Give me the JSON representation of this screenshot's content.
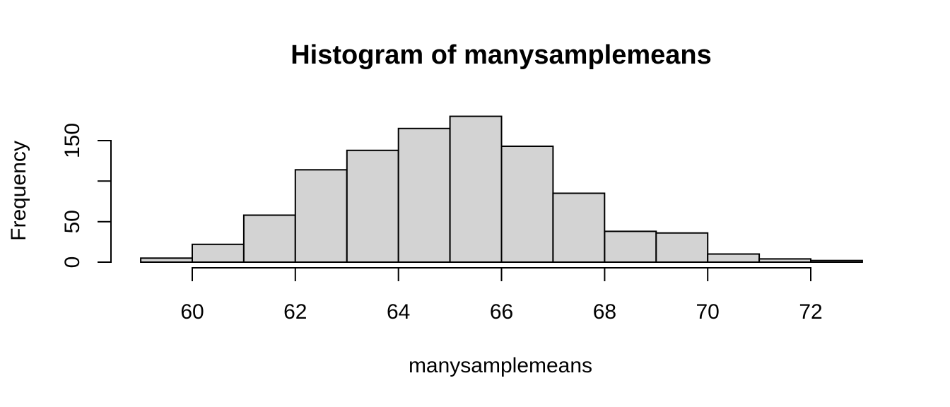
{
  "chart_data": {
    "type": "bar",
    "subtype": "histogram",
    "title": "Histogram of manysamplemeans",
    "xlabel": "manysamplemeans",
    "ylabel": "Frequency",
    "bin_edges": [
      59,
      60,
      61,
      62,
      63,
      64,
      65,
      66,
      67,
      68,
      69,
      70,
      71,
      72,
      73
    ],
    "counts": [
      5,
      22,
      58,
      114,
      138,
      165,
      180,
      143,
      85,
      38,
      36,
      10,
      4,
      2
    ],
    "x_ticks": [
      60,
      62,
      64,
      66,
      68,
      70,
      72
    ],
    "x_tick_labels": [
      "60",
      "62",
      "64",
      "66",
      "68",
      "70",
      "72"
    ],
    "y_ticks": [
      0,
      50,
      100,
      150
    ],
    "y_tick_labels": [
      "0",
      "50",
      "",
      "150"
    ],
    "xlim": [
      58.4,
      73.6
    ],
    "ylim": [
      0,
      187
    ],
    "grid": false,
    "bar_fill": "#d3d3d3",
    "bar_stroke": "#000000",
    "axis_color": "#000000",
    "background": "#ffffff"
  }
}
